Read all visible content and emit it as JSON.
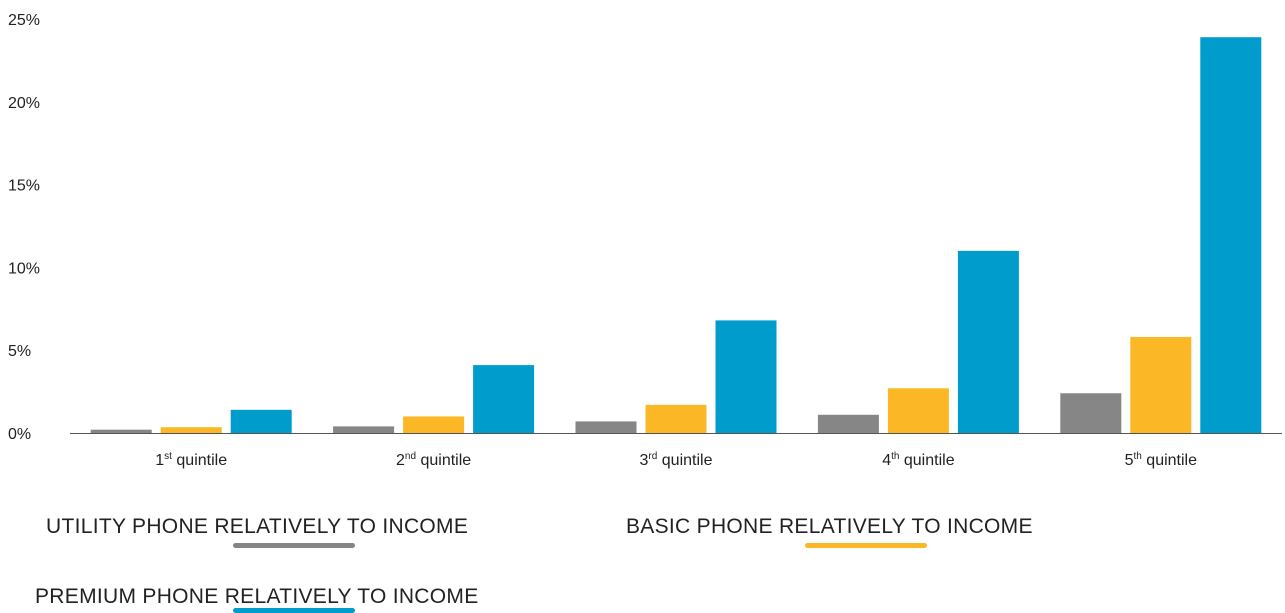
{
  "chart_data": {
    "type": "bar",
    "categories": [
      {
        "num": "1",
        "sup": "st",
        "rest": " quintile"
      },
      {
        "num": "2",
        "sup": "nd",
        "rest": " quintile"
      },
      {
        "num": "3",
        "sup": "rd",
        "rest": " quintile"
      },
      {
        "num": "4",
        "sup": "th",
        "rest": " quintile"
      },
      {
        "num": "5",
        "sup": "th",
        "rest": " quintile"
      }
    ],
    "series": [
      {
        "name": "UTILITY PHONE RELATIVELY TO INCOME",
        "color": "#868686",
        "values": [
          0.2,
          0.4,
          0.7,
          1.1,
          2.4
        ]
      },
      {
        "name": "BASIC PHONE RELATIVELY TO INCOME",
        "color": "#fbb726",
        "values": [
          0.35,
          1.0,
          1.7,
          2.7,
          5.8
        ]
      },
      {
        "name": "PREMIUM PHONE RELATIVELY TO INCOME",
        "color": "#009ccc",
        "values": [
          1.4,
          4.1,
          6.8,
          11.0,
          23.9
        ]
      }
    ],
    "ylim": [
      0,
      25
    ],
    "yticks": [
      0,
      5,
      10,
      15,
      20,
      25
    ],
    "ytick_labels": [
      "0%",
      "5%",
      "10%",
      "15%",
      "20%",
      "25%"
    ],
    "title": "",
    "xlabel": "",
    "ylabel": "",
    "grid": false,
    "legend_position": "bottom"
  }
}
